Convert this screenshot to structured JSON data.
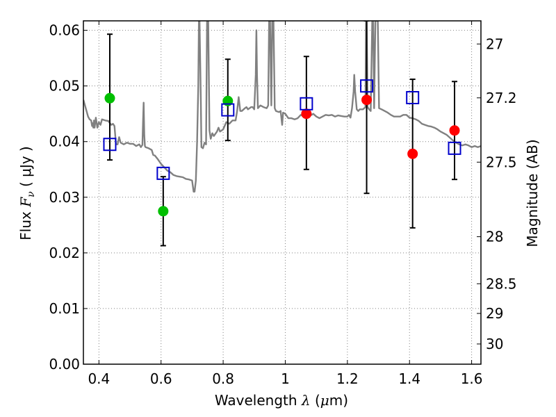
{
  "chart_data": {
    "type": "scatter",
    "xlabel_pre": "Wavelength",
    "xlabel_lambda": "λ",
    "xlabel_unit_open": "(",
    "xlabel_mu": "μ",
    "xlabel_unit_close": "m)",
    "ylabel_pre": "Flux",
    "ylabel_F": "F",
    "ylabel_nu": "ν",
    "ylabel_unit": "( μJy )",
    "y2label": "Magnitude (AB)",
    "xlim": [
      0.35,
      1.63
    ],
    "ylim": [
      0.0,
      0.0617
    ],
    "grid": true,
    "x_ticks": [
      0.4,
      0.6,
      0.8,
      1.0,
      1.2,
      1.4,
      1.6
    ],
    "x_tick_labels": [
      "0.4",
      "0.6",
      "0.8",
      "1",
      "1.2",
      "1.4",
      "1.6"
    ],
    "y_ticks": [
      0.0,
      0.01,
      0.02,
      0.03,
      0.04,
      0.05,
      0.06
    ],
    "y_tick_labels": [
      "0.00",
      "0.01",
      "0.02",
      "0.03",
      "0.04",
      "0.05",
      "0.06"
    ],
    "y2_ticks": [
      {
        "mag": 27.0,
        "label": "27"
      },
      {
        "mag": 27.2,
        "label": "27.2"
      },
      {
        "mag": 27.5,
        "label": "27.5"
      },
      {
        "mag": 28.0,
        "label": "28"
      },
      {
        "mag": 28.5,
        "label": "28.5"
      },
      {
        "mag": 29.0,
        "label": "29"
      },
      {
        "mag": 30.0,
        "label": "30"
      }
    ],
    "colors": {
      "spectrum": "#808080",
      "green": "#00bf00",
      "red": "#ff0000",
      "model": "#0000cc",
      "errorbar": "#000000",
      "grid": "#808080"
    },
    "spectrum": [
      [
        0.35,
        0.0475
      ],
      [
        0.36,
        0.0455
      ],
      [
        0.365,
        0.0445
      ],
      [
        0.37,
        0.044
      ],
      [
        0.375,
        0.0438
      ],
      [
        0.378,
        0.0428
      ],
      [
        0.38,
        0.0433
      ],
      [
        0.382,
        0.0425
      ],
      [
        0.384,
        0.0438
      ],
      [
        0.386,
        0.0425
      ],
      [
        0.39,
        0.0443
      ],
      [
        0.395,
        0.0425
      ],
      [
        0.4,
        0.0435
      ],
      [
        0.405,
        0.043
      ],
      [
        0.41,
        0.044
      ],
      [
        0.42,
        0.0438
      ],
      [
        0.43,
        0.0437
      ],
      [
        0.44,
        0.043
      ],
      [
        0.445,
        0.0432
      ],
      [
        0.45,
        0.0428
      ],
      [
        0.455,
        0.0395
      ],
      [
        0.46,
        0.0395
      ],
      [
        0.465,
        0.0408
      ],
      [
        0.47,
        0.0398
      ],
      [
        0.48,
        0.0395
      ],
      [
        0.49,
        0.0398
      ],
      [
        0.5,
        0.0396
      ],
      [
        0.51,
        0.0396
      ],
      [
        0.52,
        0.0392
      ],
      [
        0.53,
        0.0395
      ],
      [
        0.535,
        0.039
      ],
      [
        0.54,
        0.0394
      ],
      [
        0.542,
        0.0435
      ],
      [
        0.544,
        0.047
      ],
      [
        0.546,
        0.0412
      ],
      [
        0.548,
        0.0392
      ],
      [
        0.55,
        0.039
      ],
      [
        0.56,
        0.0388
      ],
      [
        0.57,
        0.0385
      ],
      [
        0.575,
        0.0376
      ],
      [
        0.58,
        0.0375
      ],
      [
        0.59,
        0.0368
      ],
      [
        0.6,
        0.036
      ],
      [
        0.61,
        0.0354
      ],
      [
        0.62,
        0.0348
      ],
      [
        0.63,
        0.0345
      ],
      [
        0.64,
        0.034
      ],
      [
        0.65,
        0.0338
      ],
      [
        0.66,
        0.0337
      ],
      [
        0.67,
        0.0336
      ],
      [
        0.68,
        0.0333
      ],
      [
        0.69,
        0.0332
      ],
      [
        0.7,
        0.033
      ],
      [
        0.705,
        0.031
      ],
      [
        0.708,
        0.031
      ],
      [
        0.712,
        0.033
      ],
      [
        0.716,
        0.04
      ],
      [
        0.72,
        0.05
      ],
      [
        0.722,
        0.0617
      ],
      [
        0.724,
        0.0617
      ],
      [
        0.728,
        0.048
      ],
      [
        0.73,
        0.039
      ],
      [
        0.735,
        0.0388
      ],
      [
        0.74,
        0.0398
      ],
      [
        0.745,
        0.0395
      ],
      [
        0.748,
        0.0617
      ],
      [
        0.752,
        0.0617
      ],
      [
        0.756,
        0.042
      ],
      [
        0.76,
        0.0405
      ],
      [
        0.765,
        0.0415
      ],
      [
        0.77,
        0.041
      ],
      [
        0.78,
        0.0418
      ],
      [
        0.785,
        0.0425
      ],
      [
        0.79,
        0.0418
      ],
      [
        0.8,
        0.0422
      ],
      [
        0.81,
        0.0435
      ],
      [
        0.82,
        0.0432
      ],
      [
        0.83,
        0.0438
      ],
      [
        0.84,
        0.0438
      ],
      [
        0.845,
        0.0455
      ],
      [
        0.85,
        0.048
      ],
      [
        0.855,
        0.0455
      ],
      [
        0.86,
        0.0455
      ],
      [
        0.87,
        0.046
      ],
      [
        0.875,
        0.0462
      ],
      [
        0.88,
        0.0458
      ],
      [
        0.89,
        0.0462
      ],
      [
        0.895,
        0.0462
      ],
      [
        0.9,
        0.0458
      ],
      [
        0.905,
        0.052
      ],
      [
        0.907,
        0.06
      ],
      [
        0.909,
        0.052
      ],
      [
        0.912,
        0.046
      ],
      [
        0.92,
        0.0465
      ],
      [
        0.93,
        0.0462
      ],
      [
        0.94,
        0.046
      ],
      [
        0.945,
        0.0465
      ],
      [
        0.948,
        0.0617
      ],
      [
        0.951,
        0.0617
      ],
      [
        0.955,
        0.0465
      ],
      [
        0.958,
        0.0617
      ],
      [
        0.962,
        0.0617
      ],
      [
        0.966,
        0.046
      ],
      [
        0.97,
        0.0455
      ],
      [
        0.98,
        0.0453
      ],
      [
        0.985,
        0.0455
      ],
      [
        0.988,
        0.044
      ],
      [
        0.99,
        0.043
      ],
      [
        0.993,
        0.0452
      ],
      [
        1.0,
        0.045
      ],
      [
        1.01,
        0.0442
      ],
      [
        1.02,
        0.0442
      ],
      [
        1.03,
        0.044
      ],
      [
        1.04,
        0.0442
      ],
      [
        1.05,
        0.0448
      ],
      [
        1.06,
        0.0445
      ],
      [
        1.07,
        0.0447
      ],
      [
        1.08,
        0.0452
      ],
      [
        1.085,
        0.0448
      ],
      [
        1.09,
        0.045
      ],
      [
        1.1,
        0.0445
      ],
      [
        1.11,
        0.0442
      ],
      [
        1.12,
        0.0445
      ],
      [
        1.13,
        0.0448
      ],
      [
        1.14,
        0.0447
      ],
      [
        1.15,
        0.0448
      ],
      [
        1.16,
        0.0445
      ],
      [
        1.17,
        0.0447
      ],
      [
        1.18,
        0.0446
      ],
      [
        1.19,
        0.0445
      ],
      [
        1.2,
        0.0445
      ],
      [
        1.205,
        0.0448
      ],
      [
        1.21,
        0.0443
      ],
      [
        1.215,
        0.046
      ],
      [
        1.22,
        0.049
      ],
      [
        1.222,
        0.052
      ],
      [
        1.225,
        0.049
      ],
      [
        1.23,
        0.0458
      ],
      [
        1.235,
        0.0455
      ],
      [
        1.24,
        0.0458
      ],
      [
        1.25,
        0.0458
      ],
      [
        1.258,
        0.0462
      ],
      [
        1.26,
        0.0617
      ],
      [
        1.262,
        0.0617
      ],
      [
        1.265,
        0.0462
      ],
      [
        1.27,
        0.0458
      ],
      [
        1.275,
        0.0455
      ],
      [
        1.28,
        0.0617
      ],
      [
        1.283,
        0.0617
      ],
      [
        1.286,
        0.046
      ],
      [
        1.29,
        0.0617
      ],
      [
        1.298,
        0.0617
      ],
      [
        1.302,
        0.046
      ],
      [
        1.31,
        0.0458
      ],
      [
        1.32,
        0.0455
      ],
      [
        1.33,
        0.0452
      ],
      [
        1.34,
        0.0448
      ],
      [
        1.35,
        0.0445
      ],
      [
        1.36,
        0.0445
      ],
      [
        1.37,
        0.0445
      ],
      [
        1.38,
        0.0448
      ],
      [
        1.39,
        0.0448
      ],
      [
        1.4,
        0.0443
      ],
      [
        1.41,
        0.0442
      ],
      [
        1.42,
        0.044
      ],
      [
        1.43,
        0.0437
      ],
      [
        1.44,
        0.0432
      ],
      [
        1.45,
        0.043
      ],
      [
        1.46,
        0.0428
      ],
      [
        1.47,
        0.0427
      ],
      [
        1.48,
        0.0425
      ],
      [
        1.49,
        0.0422
      ],
      [
        1.5,
        0.0418
      ],
      [
        1.51,
        0.0415
      ],
      [
        1.52,
        0.0412
      ],
      [
        1.53,
        0.0407
      ],
      [
        1.54,
        0.0402
      ],
      [
        1.55,
        0.0398
      ],
      [
        1.56,
        0.0395
      ],
      [
        1.57,
        0.0393
      ],
      [
        1.58,
        0.0395
      ],
      [
        1.59,
        0.0393
      ],
      [
        1.6,
        0.039
      ],
      [
        1.61,
        0.0392
      ],
      [
        1.62,
        0.039
      ],
      [
        1.63,
        0.0392
      ]
    ],
    "green_points": [
      {
        "x": 0.435,
        "y": 0.0478
      },
      {
        "x": 0.607,
        "y": 0.0275
      },
      {
        "x": 0.815,
        "y": 0.0473
      }
    ],
    "red_points": [
      {
        "x": 1.068,
        "y": 0.045
      },
      {
        "x": 1.262,
        "y": 0.0475
      },
      {
        "x": 1.41,
        "y": 0.0378
      },
      {
        "x": 1.545,
        "y": 0.042
      }
    ],
    "errorbars": [
      {
        "x": 0.435,
        "lo": 0.0367,
        "hi": 0.0593
      },
      {
        "x": 0.607,
        "lo": 0.0213,
        "hi": 0.0337
      },
      {
        "x": 0.815,
        "lo": 0.0402,
        "hi": 0.0548
      },
      {
        "x": 1.068,
        "lo": 0.035,
        "hi": 0.0553
      },
      {
        "x": 1.262,
        "lo": 0.0307,
        "hi": 0.0617
      },
      {
        "x": 1.41,
        "lo": 0.0245,
        "hi": 0.0512
      },
      {
        "x": 1.545,
        "lo": 0.0332,
        "hi": 0.0508
      }
    ],
    "model_points": [
      {
        "x": 0.435,
        "y": 0.0395
      },
      {
        "x": 0.607,
        "y": 0.0343
      },
      {
        "x": 0.815,
        "y": 0.0457
      },
      {
        "x": 1.068,
        "y": 0.0468
      },
      {
        "x": 1.262,
        "y": 0.05
      },
      {
        "x": 1.41,
        "y": 0.0479
      },
      {
        "x": 1.545,
        "y": 0.0388
      }
    ]
  }
}
